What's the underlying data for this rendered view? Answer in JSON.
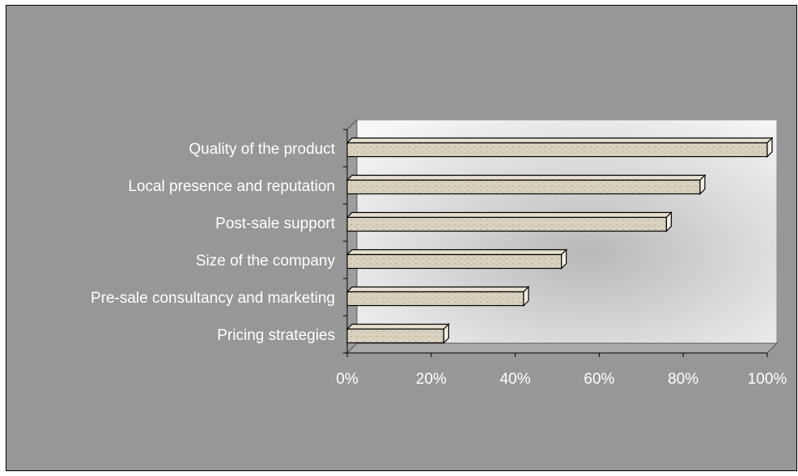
{
  "chart_data": {
    "type": "bar",
    "orientation": "horizontal",
    "three_d": true,
    "categories": [
      "Quality of the product",
      "Local presence and reputation",
      "Post-sale support",
      "Size of the company",
      "Pre-sale consultancy and marketing",
      "Pricing strategies"
    ],
    "values": [
      100,
      84,
      76,
      51,
      42,
      23
    ],
    "value_unit": "%",
    "xlim": [
      0,
      100
    ],
    "x_ticks": [
      "0%",
      "20%",
      "40%",
      "60%",
      "80%",
      "100%"
    ],
    "title": "",
    "xlabel": "",
    "ylabel": "",
    "legend": "none",
    "grid": false,
    "colors": {
      "chart_background": "#979797",
      "bar_fill": "#d8d0bd",
      "bar_texture": "#b9ae96",
      "bar_side": "#a89c82",
      "bar_outline": "#000000",
      "wall_light": "#f6f6f6",
      "wall_dark": "#bdbdbd",
      "label_text": "#ffffff"
    }
  }
}
